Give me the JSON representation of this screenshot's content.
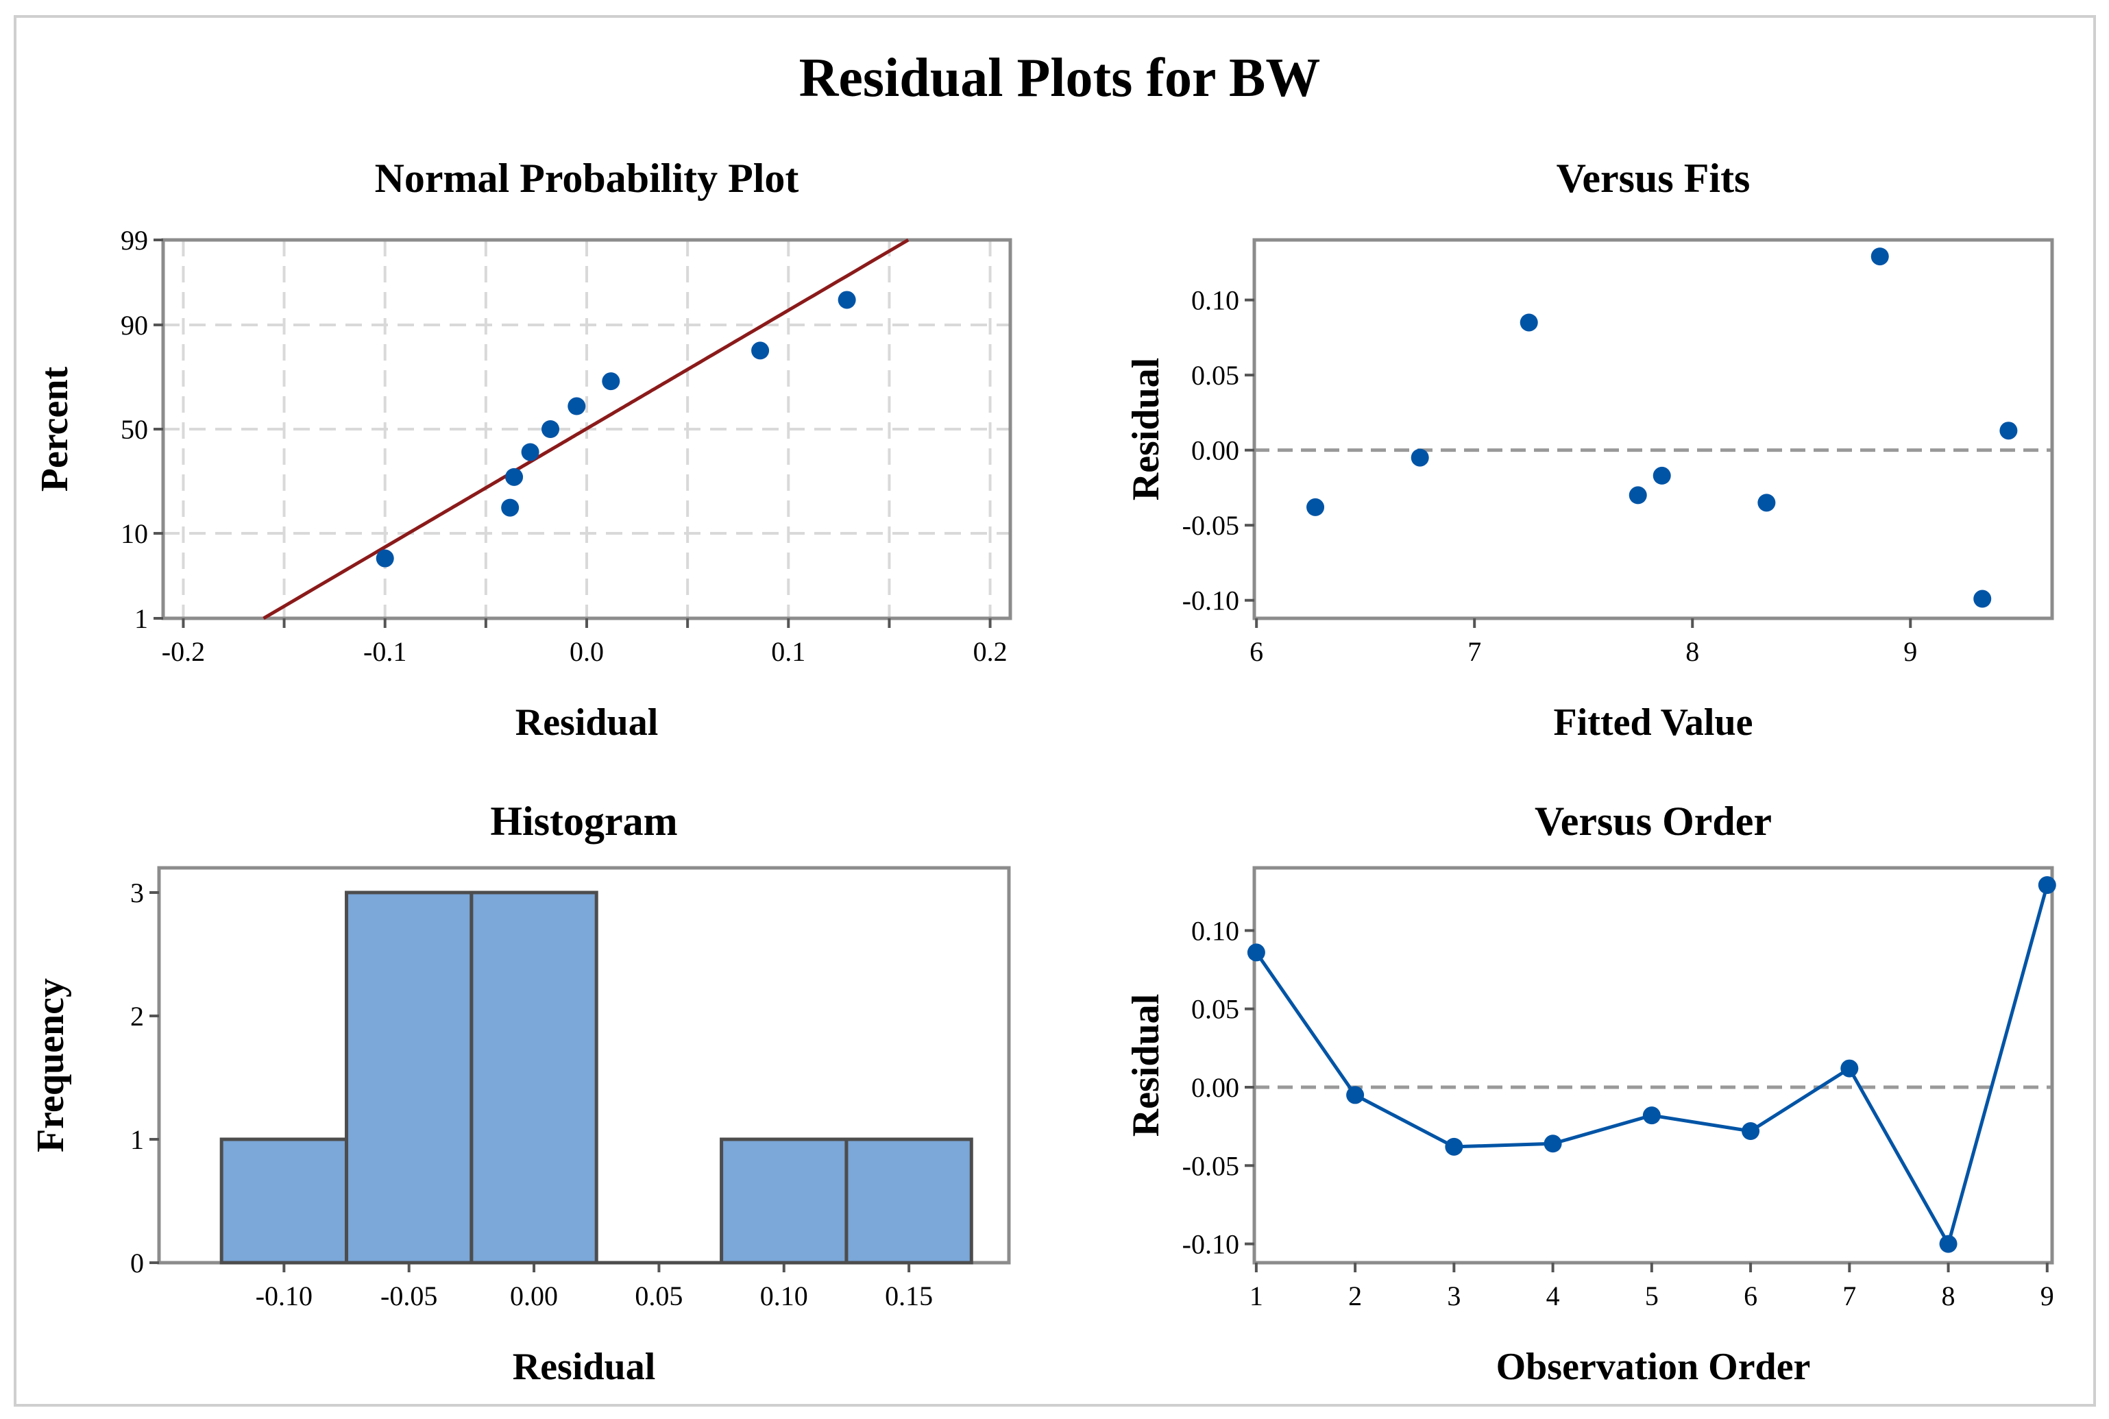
{
  "title": "Residual Plots for BW",
  "colors": {
    "marker": "#0054a6",
    "fit_line": "#8b1a1a",
    "bar_fill": "#7ba7d9",
    "bar_edge": "#4d4d4d",
    "frame": "#8c8c8c",
    "grid": "#d9d9d9",
    "reference_line": "#999999"
  },
  "chart_data": [
    {
      "id": "normal-probability",
      "type": "scatter",
      "title": "Normal Probability Plot",
      "xlabel": "Residual",
      "ylabel": "Percent",
      "xlim": [
        -0.21,
        0.21
      ],
      "ylim_percent": [
        1,
        99
      ],
      "y_scale": "normal-probability",
      "grid": true,
      "x_ticks": [
        -0.2,
        -0.15,
        -0.1,
        -0.05,
        0.0,
        0.05,
        0.1,
        0.15,
        0.2
      ],
      "x_tick_labels": [
        "-0.2",
        "",
        "-0.1",
        "",
        "0.0",
        "",
        "0.1",
        "",
        "0.2"
      ],
      "y_ticks": [
        1,
        10,
        50,
        90,
        99
      ],
      "y_tick_labels": [
        "1",
        "10",
        "50",
        "90",
        "99"
      ],
      "points": [
        {
          "x": -0.1,
          "y": 5.6
        },
        {
          "x": -0.038,
          "y": 16.7
        },
        {
          "x": -0.036,
          "y": 27.8
        },
        {
          "x": -0.028,
          "y": 38.9
        },
        {
          "x": -0.018,
          "y": 50.0
        },
        {
          "x": -0.005,
          "y": 61.1
        },
        {
          "x": 0.012,
          "y": 72.2
        },
        {
          "x": 0.086,
          "y": 83.3
        },
        {
          "x": 0.129,
          "y": 94.4
        }
      ],
      "fit_line": {
        "mean": -0.0004,
        "sd": 0.0687
      }
    },
    {
      "id": "versus-fits",
      "type": "scatter",
      "title": "Versus Fits",
      "xlabel": "Fitted Value",
      "ylabel": "Residual",
      "xlim": [
        5.99,
        9.65
      ],
      "ylim": [
        -0.112,
        0.14
      ],
      "x_ticks": [
        6,
        7,
        8,
        9
      ],
      "x_tick_labels": [
        "6",
        "7",
        "8",
        "9"
      ],
      "y_ticks": [
        -0.1,
        -0.05,
        0.0,
        0.05,
        0.1
      ],
      "y_tick_labels": [
        "-0.10",
        "-0.05",
        "0.00",
        "0.05",
        "0.10"
      ],
      "reference_y": 0,
      "points": [
        {
          "x": 6.27,
          "y": -0.038
        },
        {
          "x": 6.75,
          "y": -0.005
        },
        {
          "x": 7.25,
          "y": 0.085
        },
        {
          "x": 7.75,
          "y": -0.03
        },
        {
          "x": 7.86,
          "y": -0.017
        },
        {
          "x": 8.34,
          "y": -0.035
        },
        {
          "x": 8.86,
          "y": 0.129
        },
        {
          "x": 9.33,
          "y": -0.099
        },
        {
          "x": 9.45,
          "y": 0.013
        }
      ]
    },
    {
      "id": "histogram",
      "type": "bar",
      "title": "Histogram",
      "xlabel": "Residual",
      "ylabel": "Frequency",
      "xlim": [
        -0.15,
        0.19
      ],
      "ylim": [
        0,
        3.2
      ],
      "bin_width": 0.05,
      "bins": [
        {
          "center": -0.1,
          "count": 1
        },
        {
          "center": -0.05,
          "count": 3
        },
        {
          "center": 0.0,
          "count": 3
        },
        {
          "center": 0.05,
          "count": 0
        },
        {
          "center": 0.1,
          "count": 1
        },
        {
          "center": 0.15,
          "count": 1
        }
      ],
      "x_ticks": [
        -0.1,
        -0.05,
        0.0,
        0.05,
        0.1,
        0.15
      ],
      "x_tick_labels": [
        "-0.10",
        "-0.05",
        "0.00",
        "0.05",
        "0.10",
        "0.15"
      ],
      "y_ticks": [
        0,
        1,
        2,
        3
      ],
      "y_tick_labels": [
        "0",
        "1",
        "2",
        "3"
      ]
    },
    {
      "id": "versus-order",
      "type": "line",
      "title": "Versus Order",
      "xlabel": "Observation Order",
      "ylabel": "Residual",
      "xlim": [
        0.98,
        9.05
      ],
      "ylim": [
        -0.112,
        0.14
      ],
      "x_ticks": [
        1,
        2,
        3,
        4,
        5,
        6,
        7,
        8,
        9
      ],
      "x_tick_labels": [
        "1",
        "2",
        "3",
        "4",
        "5",
        "6",
        "7",
        "8",
        "9"
      ],
      "y_ticks": [
        -0.1,
        -0.05,
        0.0,
        0.05,
        0.1
      ],
      "y_tick_labels": [
        "-0.10",
        "-0.05",
        "0.00",
        "0.05",
        "0.10"
      ],
      "reference_y": 0,
      "points": [
        {
          "x": 1,
          "y": 0.086
        },
        {
          "x": 2,
          "y": -0.005
        },
        {
          "x": 3,
          "y": -0.038
        },
        {
          "x": 4,
          "y": -0.036
        },
        {
          "x": 5,
          "y": -0.018
        },
        {
          "x": 6,
          "y": -0.028
        },
        {
          "x": 7,
          "y": 0.012
        },
        {
          "x": 8,
          "y": -0.1
        },
        {
          "x": 9,
          "y": 0.129
        }
      ]
    }
  ]
}
